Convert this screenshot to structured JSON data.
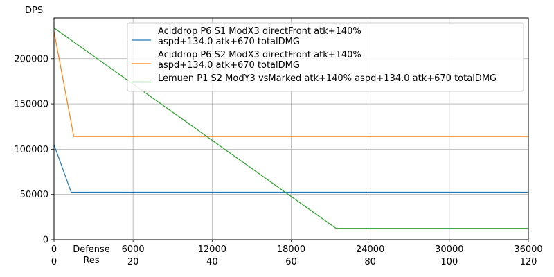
{
  "chart_data": {
    "type": "line",
    "title": "",
    "ylabel": "DPS",
    "xlabel": "Defense\nRes",
    "xlim": [
      0,
      36000
    ],
    "ylim": [
      0,
      245000
    ],
    "x_ticks": [
      0,
      6000,
      12000,
      18000,
      24000,
      30000,
      36000
    ],
    "x_ticks_secondary": [
      0,
      20,
      40,
      60,
      80,
      100,
      120
    ],
    "y_ticks": [
      0,
      50000,
      100000,
      150000,
      200000
    ],
    "grid": true,
    "legend_position": "top-right",
    "series": [
      {
        "name": "Aciddrop P6 S1 ModX3 directFront atk+140%\naspd+134.0 atk+670 totalDMG",
        "color": "#1f77b4",
        "x": [
          0,
          1300,
          36000
        ],
        "y": [
          105000,
          52500,
          52500
        ]
      },
      {
        "name": "Aciddrop P6 S2 ModX3 directFront atk+140%\naspd+134.0 atk+670 totalDMG",
        "color": "#ff7f0e",
        "x": [
          0,
          1500,
          36000
        ],
        "y": [
          230000,
          114000,
          114000
        ]
      },
      {
        "name": "Lemuen P1 S2 ModY3 vsMarked atk+140% aspd+134.0 atk+670 totalDMG",
        "color": "#2ca02c",
        "x": [
          0,
          21400,
          36000
        ],
        "y": [
          234000,
          12500,
          12500
        ]
      }
    ]
  }
}
